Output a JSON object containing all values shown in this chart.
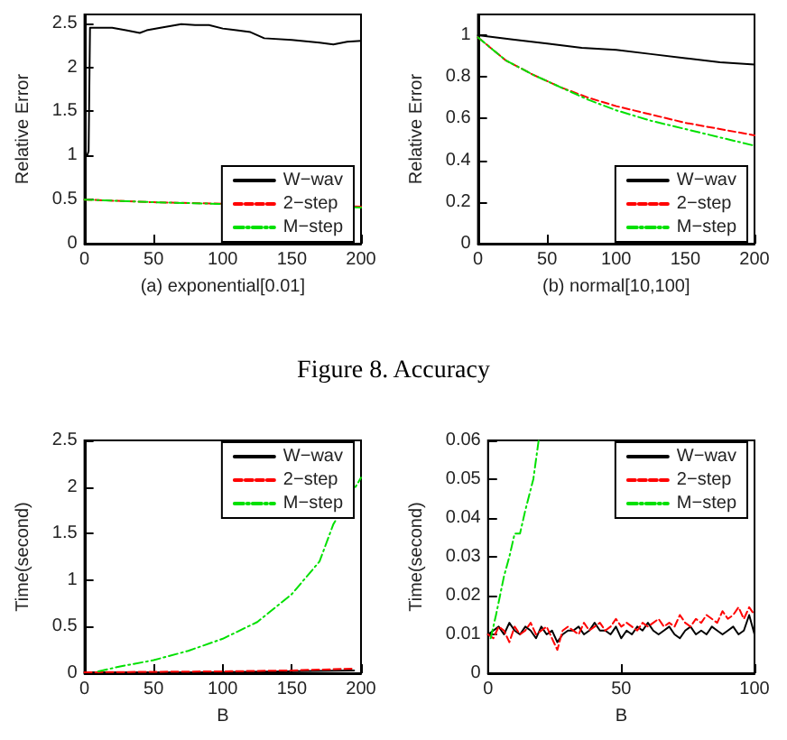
{
  "chart_data": [
    {
      "type": "line",
      "xlabel": "(a) exponential[0.01]",
      "ylabel": "Relative Error",
      "xlim": [
        0,
        200
      ],
      "xticks": [
        0,
        50,
        100,
        150,
        200
      ],
      "ylim": [
        0,
        2.6
      ],
      "yticks": [
        0,
        0.5,
        1,
        1.5,
        2,
        2.5
      ],
      "grid": false,
      "legend": "bottom right",
      "marker": "none",
      "series": [
        {
          "name": "W−wav",
          "color": "#000000",
          "line_style": "solid",
          "x": [
            2,
            3,
            4,
            10,
            20,
            30,
            40,
            45,
            55,
            70,
            80,
            90,
            100,
            110,
            120,
            130,
            150,
            170,
            180,
            190,
            200
          ],
          "values": [
            1.0,
            1.05,
            2.45,
            2.45,
            2.45,
            2.42,
            2.39,
            2.42,
            2.45,
            2.49,
            2.48,
            2.48,
            2.44,
            2.42,
            2.4,
            2.33,
            2.31,
            2.28,
            2.26,
            2.29,
            2.3
          ]
        },
        {
          "name": "2−step",
          "color": "#ff0000",
          "line_style": "dashed",
          "x": [
            0,
            50,
            200
          ],
          "values": [
            0.5,
            0.47,
            0.42
          ]
        },
        {
          "name": "M−step",
          "color": "#00e000",
          "line_style": "dotted",
          "x": [
            0,
            50,
            100,
            200
          ],
          "values": [
            0.5,
            0.47,
            0.45,
            0.41
          ]
        }
      ]
    },
    {
      "type": "line",
      "xlabel": "(b) normal[10,100]",
      "ylabel": "Relative Error",
      "annotations": [
        "Figure 8.   Accuracy"
      ],
      "xlim": [
        0,
        200
      ],
      "xticks": [
        0,
        50,
        100,
        150,
        200
      ],
      "ylim": [
        0,
        1.1
      ],
      "yticks": [
        0,
        0.2,
        0.4,
        0.6,
        0.8,
        1
      ],
      "grid": false,
      "legend": "bottom right",
      "marker": "none",
      "series": [
        {
          "name": "W−wav",
          "color": "#000000",
          "line_style": "solid",
          "x": [
            0,
            25,
            50,
            75,
            100,
            125,
            150,
            175,
            200
          ],
          "values": [
            1.0,
            0.98,
            0.96,
            0.94,
            0.93,
            0.91,
            0.89,
            0.87,
            0.86
          ]
        },
        {
          "name": "2−step",
          "color": "#ff0000",
          "line_style": "dashed",
          "x": [
            0,
            20,
            40,
            60,
            80,
            100,
            125,
            150,
            175,
            200
          ],
          "values": [
            0.99,
            0.88,
            0.81,
            0.75,
            0.7,
            0.66,
            0.62,
            0.58,
            0.55,
            0.52
          ]
        },
        {
          "name": "M−step",
          "color": "#00e000",
          "line_style": "dotted",
          "x": [
            0,
            20,
            40,
            60,
            80,
            100,
            125,
            150,
            175,
            200
          ],
          "values": [
            0.99,
            0.88,
            0.81,
            0.75,
            0.69,
            0.64,
            0.59,
            0.55,
            0.51,
            0.47
          ]
        }
      ]
    },
    {
      "type": "line",
      "xlabel": "B",
      "ylabel": "Time(second)",
      "xlim": [
        0,
        200
      ],
      "xticks": [
        0,
        50,
        100,
        150,
        200
      ],
      "ylim": [
        0,
        2.5
      ],
      "yticks": [
        0,
        0.5,
        1,
        1.5,
        2,
        2.5
      ],
      "grid": false,
      "legend": "top right",
      "marker": "none",
      "series": [
        {
          "name": "W−wav",
          "color": "#000000",
          "line_style": "solid",
          "x": [
            0,
            100,
            195
          ],
          "values": [
            0.01,
            0.01,
            0.03
          ]
        },
        {
          "name": "2−step",
          "color": "#ff0000",
          "line_style": "dashed",
          "x": [
            0,
            100,
            150,
            195
          ],
          "values": [
            0.01,
            0.02,
            0.03,
            0.05
          ]
        },
        {
          "name": "M−step",
          "color": "#00e000",
          "line_style": "dotted",
          "x": [
            10,
            25,
            50,
            75,
            100,
            125,
            150,
            170,
            180,
            200
          ],
          "values": [
            0.02,
            0.07,
            0.14,
            0.24,
            0.37,
            0.55,
            0.85,
            1.2,
            1.6,
            2.1
          ]
        }
      ]
    },
    {
      "type": "line",
      "xlabel": "B",
      "ylabel": "Time(second)",
      "xlim": [
        0,
        100
      ],
      "xticks": [
        0,
        50,
        100
      ],
      "ylim": [
        0,
        0.06
      ],
      "yticks": [
        0,
        0.01,
        0.02,
        0.03,
        0.04,
        0.05,
        0.06
      ],
      "grid": false,
      "legend": "top right",
      "marker": "none",
      "series": [
        {
          "name": "W−wav",
          "color": "#000000",
          "line_style": "solid",
          "x": [
            0,
            2,
            4,
            6,
            8,
            10,
            12,
            14,
            16,
            18,
            20,
            22,
            24,
            26,
            28,
            30,
            32,
            34,
            36,
            38,
            40,
            42,
            44,
            46,
            48,
            50,
            52,
            54,
            56,
            58,
            60,
            62,
            64,
            66,
            68,
            70,
            72,
            74,
            76,
            78,
            80,
            82,
            84,
            86,
            88,
            90,
            92,
            94,
            96,
            98,
            100
          ],
          "values": [
            0.01,
            0.011,
            0.012,
            0.01,
            0.013,
            0.011,
            0.01,
            0.012,
            0.011,
            0.009,
            0.012,
            0.01,
            0.011,
            0.008,
            0.01,
            0.011,
            0.011,
            0.012,
            0.01,
            0.011,
            0.013,
            0.011,
            0.011,
            0.01,
            0.012,
            0.009,
            0.011,
            0.01,
            0.012,
            0.011,
            0.013,
            0.011,
            0.01,
            0.011,
            0.012,
            0.01,
            0.009,
            0.011,
            0.012,
            0.01,
            0.011,
            0.01,
            0.012,
            0.011,
            0.01,
            0.011,
            0.012,
            0.01,
            0.011,
            0.015,
            0.01
          ]
        },
        {
          "name": "2−step",
          "color": "#ff0000",
          "line_style": "dashed",
          "x": [
            0,
            2,
            4,
            6,
            8,
            10,
            12,
            14,
            16,
            18,
            20,
            22,
            24,
            26,
            28,
            30,
            32,
            34,
            36,
            38,
            40,
            42,
            44,
            46,
            48,
            50,
            52,
            54,
            56,
            58,
            60,
            62,
            64,
            66,
            68,
            70,
            72,
            74,
            76,
            78,
            80,
            82,
            84,
            86,
            88,
            90,
            92,
            94,
            96,
            98,
            100
          ],
          "values": [
            0.01,
            0.009,
            0.012,
            0.011,
            0.008,
            0.012,
            0.01,
            0.011,
            0.013,
            0.01,
            0.011,
            0.012,
            0.009,
            0.006,
            0.011,
            0.012,
            0.011,
            0.01,
            0.013,
            0.011,
            0.012,
            0.013,
            0.011,
            0.012,
            0.014,
            0.012,
            0.013,
            0.012,
            0.011,
            0.013,
            0.012,
            0.013,
            0.014,
            0.012,
            0.013,
            0.012,
            0.015,
            0.013,
            0.012,
            0.014,
            0.013,
            0.015,
            0.014,
            0.013,
            0.016,
            0.014,
            0.015,
            0.017,
            0.014,
            0.017,
            0.015
          ]
        },
        {
          "name": "M−step",
          "color": "#00e000",
          "line_style": "dotted",
          "x": [
            1,
            3,
            6,
            8,
            10,
            12,
            14,
            17,
            19
          ],
          "values": [
            0.009,
            0.015,
            0.025,
            0.03,
            0.036,
            0.036,
            0.042,
            0.05,
            0.06
          ]
        }
      ]
    }
  ]
}
